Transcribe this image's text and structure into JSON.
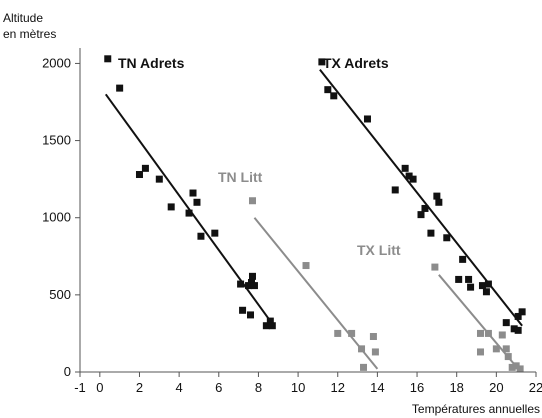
{
  "chart_data": {
    "type": "scatter",
    "title": "",
    "xlabel": "Températures annuelles",
    "ylabel_line1": "Altitude",
    "ylabel_line2": "en mètres",
    "xlim": [
      -1,
      22
    ],
    "ylim": [
      0,
      2100
    ],
    "xticks": [
      -1,
      0,
      2,
      4,
      6,
      8,
      10,
      12,
      14,
      16,
      18,
      20,
      22
    ],
    "yticks": [
      0,
      500,
      1000,
      1500,
      2000
    ],
    "grid": false,
    "legend": "none",
    "series": [
      {
        "name": "TN Adrets",
        "color": "#111111",
        "points": [
          [
            0.4,
            2030
          ],
          [
            1.0,
            1840
          ],
          [
            2.0,
            1280
          ],
          [
            2.3,
            1320
          ],
          [
            3.0,
            1250
          ],
          [
            3.6,
            1070
          ],
          [
            4.5,
            1030
          ],
          [
            4.7,
            1160
          ],
          [
            4.9,
            1100
          ],
          [
            5.1,
            880
          ],
          [
            5.8,
            900
          ],
          [
            7.1,
            570
          ],
          [
            7.2,
            400
          ],
          [
            7.5,
            560
          ],
          [
            7.6,
            370
          ],
          [
            7.65,
            580
          ],
          [
            7.7,
            620
          ],
          [
            7.8,
            560
          ],
          [
            8.4,
            300
          ],
          [
            8.6,
            330
          ],
          [
            8.7,
            300
          ]
        ],
        "fit": [
          [
            0.3,
            1800
          ],
          [
            8.6,
            330
          ]
        ]
      },
      {
        "name": "TX Adrets",
        "color": "#111111",
        "points": [
          [
            11.2,
            2010
          ],
          [
            11.5,
            1830
          ],
          [
            11.8,
            1790
          ],
          [
            13.5,
            1640
          ],
          [
            14.9,
            1180
          ],
          [
            15.4,
            1320
          ],
          [
            15.6,
            1270
          ],
          [
            15.8,
            1250
          ],
          [
            16.2,
            1020
          ],
          [
            16.4,
            1060
          ],
          [
            16.7,
            900
          ],
          [
            17.0,
            1140
          ],
          [
            17.1,
            1100
          ],
          [
            17.5,
            870
          ],
          [
            18.1,
            600
          ],
          [
            18.3,
            730
          ],
          [
            18.6,
            600
          ],
          [
            18.7,
            550
          ],
          [
            19.3,
            560
          ],
          [
            19.5,
            520
          ],
          [
            19.6,
            570
          ],
          [
            20.5,
            320
          ],
          [
            20.9,
            280
          ],
          [
            21.1,
            360
          ],
          [
            21.3,
            390
          ],
          [
            21.1,
            270
          ]
        ],
        "fit": [
          [
            11.1,
            1960
          ],
          [
            21.3,
            300
          ]
        ]
      },
      {
        "name": "TN Litt",
        "color": "#8c8c8c",
        "points": [
          [
            7.7,
            1110
          ],
          [
            10.4,
            690
          ],
          [
            12.0,
            250
          ],
          [
            12.7,
            250
          ],
          [
            13.2,
            150
          ],
          [
            13.3,
            30
          ],
          [
            13.8,
            230
          ],
          [
            13.9,
            130
          ]
        ],
        "fit": [
          [
            7.8,
            1000
          ],
          [
            14.0,
            20
          ]
        ]
      },
      {
        "name": "TX Litt",
        "color": "#8c8c8c",
        "points": [
          [
            16.9,
            680
          ],
          [
            19.2,
            250
          ],
          [
            19.2,
            130
          ],
          [
            19.6,
            250
          ],
          [
            20.0,
            150
          ],
          [
            20.3,
            240
          ],
          [
            20.5,
            150
          ],
          [
            20.6,
            100
          ],
          [
            20.8,
            30
          ],
          [
            21.0,
            40
          ],
          [
            21.2,
            20
          ]
        ],
        "fit": [
          [
            17.1,
            630
          ],
          [
            21.1,
            20
          ]
        ]
      }
    ]
  }
}
